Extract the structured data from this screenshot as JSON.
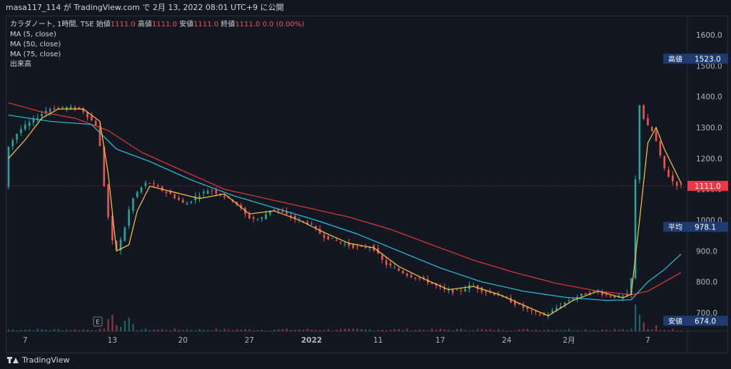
{
  "header": {
    "title": "masa117_114 が TradingView.com で 2月 13, 2022 08:01 UTC+9 に公開"
  },
  "legend": {
    "symbol": "カラダノート, 1時間, TSE",
    "open_label": "始値",
    "open": "1111.0",
    "high_label": "高値",
    "high": "1111.0",
    "low_label": "安値",
    "low": "1111.0",
    "close_label": "終値",
    "close": "1111.0",
    "change": "0.0 (0.00%)",
    "ma5": "MA (5, close)",
    "ma50": "MA (50, close)",
    "ma75": "MA (75, close)",
    "volume": "出来高"
  },
  "footer": {
    "brand": "TradingView"
  },
  "colors": {
    "background": "#131722",
    "up": "#26a69a",
    "down": "#ef5350",
    "ma5": "#f5c842",
    "ma50": "#26c6da",
    "ma75": "#e53935",
    "label_blue": "#1e3a6e",
    "price_red": "#f23645"
  },
  "chart_data": {
    "type": "candlestick",
    "x_tick_labels": [
      "7",
      "13",
      "20",
      "27",
      "2022",
      "11",
      "17",
      "24",
      "2月",
      "7"
    ],
    "y_tick_labels": [
      "700.0",
      "800.0",
      "900.0",
      "1000.0",
      "1100.0",
      "1200.0",
      "1300.0",
      "1400.0",
      "1500.0",
      "1600.0"
    ],
    "ylim": [
      640,
      1660
    ],
    "price_labels": {
      "high_label": "高値",
      "high": "1523.0",
      "average_label": "平均",
      "average": "978.1",
      "low_label": "安値",
      "low": "674.0",
      "current": "1111.0"
    },
    "event_marker": "E",
    "close_path": [
      [
        0,
        1230
      ],
      [
        3,
        1290
      ],
      [
        6,
        1320
      ],
      [
        10,
        1360
      ],
      [
        14,
        1365
      ],
      [
        18,
        1360
      ],
      [
        20,
        1330
      ],
      [
        22,
        1300
      ],
      [
        24,
        1050
      ],
      [
        26,
        890
      ],
      [
        28,
        950
      ],
      [
        30,
        1060
      ],
      [
        32,
        1100
      ],
      [
        34,
        1125
      ],
      [
        37,
        1100
      ],
      [
        40,
        1080
      ],
      [
        43,
        1050
      ],
      [
        46,
        1080
      ],
      [
        49,
        1100
      ],
      [
        52,
        1080
      ],
      [
        55,
        1060
      ],
      [
        58,
        1010
      ],
      [
        61,
        1000
      ],
      [
        64,
        1040
      ],
      [
        67,
        1020
      ],
      [
        70,
        1000
      ],
      [
        73,
        990
      ],
      [
        76,
        950
      ],
      [
        79,
        935
      ],
      [
        82,
        920
      ],
      [
        85,
        910
      ],
      [
        88,
        915
      ],
      [
        91,
        860
      ],
      [
        94,
        840
      ],
      [
        97,
        820
      ],
      [
        100,
        810
      ],
      [
        103,
        790
      ],
      [
        106,
        770
      ],
      [
        109,
        770
      ],
      [
        112,
        790
      ],
      [
        115,
        770
      ],
      [
        118,
        760
      ],
      [
        121,
        740
      ],
      [
        124,
        720
      ],
      [
        127,
        700
      ],
      [
        130,
        690
      ],
      [
        133,
        720
      ],
      [
        136,
        745
      ],
      [
        139,
        760
      ],
      [
        142,
        770
      ],
      [
        145,
        755
      ],
      [
        148,
        750
      ],
      [
        150,
        760
      ],
      [
        151,
        860
      ],
      [
        152,
        1400
      ],
      [
        153,
        1350
      ],
      [
        154,
        1310
      ],
      [
        156,
        1280
      ],
      [
        158,
        1180
      ],
      [
        160,
        1130
      ],
      [
        162,
        1111
      ]
    ],
    "ma5_path": [
      [
        0,
        1200
      ],
      [
        4,
        1260
      ],
      [
        8,
        1330
      ],
      [
        12,
        1360
      ],
      [
        18,
        1360
      ],
      [
        22,
        1320
      ],
      [
        24,
        1150
      ],
      [
        26,
        900
      ],
      [
        29,
        920
      ],
      [
        31,
        1030
      ],
      [
        34,
        1110
      ],
      [
        40,
        1090
      ],
      [
        46,
        1070
      ],
      [
        52,
        1085
      ],
      [
        58,
        1020
      ],
      [
        64,
        1030
      ],
      [
        70,
        1000
      ],
      [
        76,
        960
      ],
      [
        82,
        925
      ],
      [
        88,
        910
      ],
      [
        94,
        850
      ],
      [
        100,
        810
      ],
      [
        106,
        775
      ],
      [
        112,
        785
      ],
      [
        118,
        760
      ],
      [
        124,
        725
      ],
      [
        130,
        690
      ],
      [
        136,
        740
      ],
      [
        142,
        770
      ],
      [
        148,
        748
      ],
      [
        150,
        760
      ],
      [
        152,
        1000
      ],
      [
        154,
        1250
      ],
      [
        156,
        1300
      ],
      [
        158,
        1230
      ],
      [
        162,
        1120
      ]
    ],
    "ma50_path": [
      [
        0,
        1340
      ],
      [
        10,
        1320
      ],
      [
        20,
        1310
      ],
      [
        26,
        1230
      ],
      [
        34,
        1190
      ],
      [
        44,
        1130
      ],
      [
        54,
        1080
      ],
      [
        64,
        1040
      ],
      [
        74,
        1000
      ],
      [
        84,
        955
      ],
      [
        94,
        900
      ],
      [
        104,
        845
      ],
      [
        114,
        800
      ],
      [
        124,
        770
      ],
      [
        134,
        750
      ],
      [
        144,
        740
      ],
      [
        150,
        742
      ],
      [
        154,
        800
      ],
      [
        158,
        840
      ],
      [
        162,
        890
      ]
    ],
    "ma75_path": [
      [
        0,
        1380
      ],
      [
        8,
        1350
      ],
      [
        16,
        1330
      ],
      [
        24,
        1290
      ],
      [
        32,
        1220
      ],
      [
        42,
        1160
      ],
      [
        52,
        1100
      ],
      [
        62,
        1070
      ],
      [
        72,
        1040
      ],
      [
        82,
        1010
      ],
      [
        92,
        970
      ],
      [
        102,
        920
      ],
      [
        112,
        870
      ],
      [
        122,
        830
      ],
      [
        132,
        795
      ],
      [
        142,
        770
      ],
      [
        150,
        758
      ],
      [
        154,
        770
      ],
      [
        158,
        800
      ],
      [
        162,
        830
      ]
    ]
  }
}
